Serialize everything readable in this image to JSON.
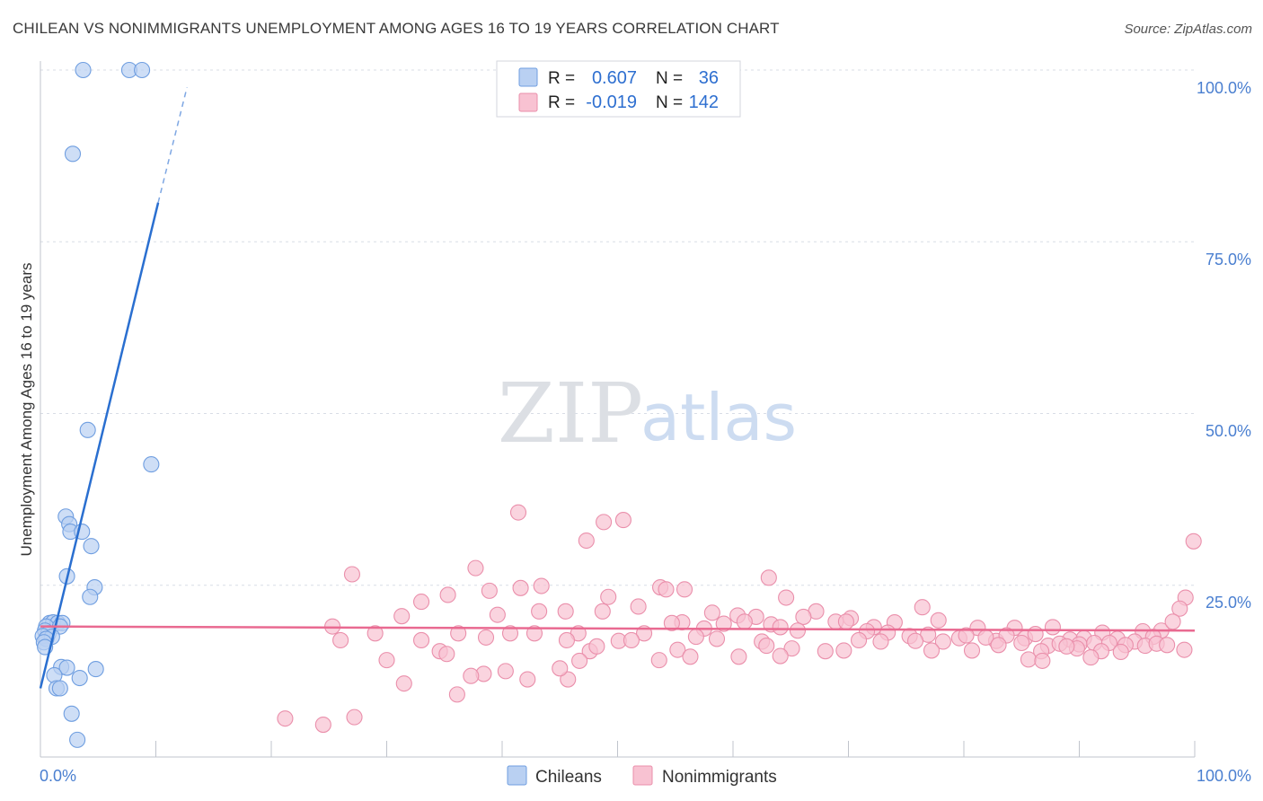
{
  "title": "CHILEAN VS NONIMMIGRANTS UNEMPLOYMENT AMONG AGES 16 TO 19 YEARS CORRELATION CHART",
  "source": "Source: ZipAtlas.com",
  "watermark": {
    "zip": "ZIP",
    "atlas": "atlas"
  },
  "colors": {
    "blue_fill": "#b9d0f2",
    "blue_stroke": "#6f9ee0",
    "blue_line": "#2a6fd0",
    "pink_fill": "#f8c2d2",
    "pink_stroke": "#ea8fab",
    "pink_line": "#e96a91",
    "grid": "#d8dde6",
    "axis": "#c0c4cc"
  },
  "legend": {
    "r_label": "R =",
    "n_label": "N =",
    "rows": [
      {
        "r": "0.607",
        "n": "36",
        "color": "blue"
      },
      {
        "r": "-0.019",
        "n": "142",
        "color": "pink"
      }
    ]
  },
  "chart_data": {
    "type": "scatter",
    "title": "CHILEAN VS NONIMMIGRANTS UNEMPLOYMENT AMONG AGES 16 TO 19 YEARS CORRELATION CHART",
    "xlabel": "",
    "ylabel": "Unemployment Among Ages 16 to 19 years",
    "xlim": [
      0,
      100
    ],
    "ylim": [
      0,
      100
    ],
    "x_tick_labels": [
      "0.0%",
      "100.0%"
    ],
    "y_tick_labels": [
      "100.0%",
      "75.0%",
      "50.0%",
      "25.0%"
    ],
    "y_ticks": [
      100,
      75,
      50,
      25
    ],
    "grid": true,
    "legend_position": "bottom",
    "series": [
      {
        "name": "Chileans",
        "color": "blue",
        "r": 0.607,
        "n": 36,
        "trend": {
          "x0": 0,
          "y0": 10.0,
          "x1": 10.2,
          "y1": 80.7,
          "dashed_to_x": 12.7,
          "dashed_to_y": 97.5
        },
        "points": [
          [
            3.7,
            100
          ],
          [
            7.7,
            100
          ],
          [
            8.8,
            100
          ],
          [
            2.8,
            87.8
          ],
          [
            4.1,
            47.6
          ],
          [
            9.6,
            42.6
          ],
          [
            2.2,
            35.0
          ],
          [
            2.5,
            33.9
          ],
          [
            2.6,
            32.8
          ],
          [
            3.6,
            32.8
          ],
          [
            4.4,
            30.7
          ],
          [
            2.3,
            26.3
          ],
          [
            4.7,
            24.7
          ],
          [
            4.3,
            23.3
          ],
          [
            0.8,
            19.5
          ],
          [
            1.1,
            19.6
          ],
          [
            1.5,
            19.5
          ],
          [
            1.9,
            19.5
          ],
          [
            0.5,
            19.0
          ],
          [
            1.7,
            19.0
          ],
          [
            0.4,
            18.4
          ],
          [
            0.7,
            18.0
          ],
          [
            0.2,
            17.6
          ],
          [
            1.0,
            17.5
          ],
          [
            0.5,
            17.2
          ],
          [
            0.3,
            16.7
          ],
          [
            0.4,
            16.0
          ],
          [
            1.8,
            13.1
          ],
          [
            2.3,
            13.0
          ],
          [
            4.8,
            12.8
          ],
          [
            1.2,
            11.9
          ],
          [
            3.4,
            11.5
          ],
          [
            1.4,
            10.0
          ],
          [
            1.7,
            10.0
          ],
          [
            2.7,
            6.3
          ],
          [
            3.2,
            2.5
          ]
        ]
      },
      {
        "name": "Nonimmigrants",
        "color": "pink",
        "r": -0.019,
        "n": 142,
        "trend": {
          "x0": 0,
          "y0": 19.0,
          "x1": 100,
          "y1": 18.4
        },
        "points": [
          [
            41.4,
            35.6
          ],
          [
            47.3,
            31.5
          ],
          [
            48.8,
            34.2
          ],
          [
            50.5,
            34.5
          ],
          [
            99.9,
            31.4
          ],
          [
            37.7,
            27.5
          ],
          [
            27.0,
            26.6
          ],
          [
            63.1,
            26.1
          ],
          [
            43.4,
            24.9
          ],
          [
            41.6,
            24.6
          ],
          [
            38.9,
            24.2
          ],
          [
            53.7,
            24.7
          ],
          [
            54.2,
            24.4
          ],
          [
            55.8,
            24.4
          ],
          [
            49.2,
            23.3
          ],
          [
            35.3,
            23.6
          ],
          [
            33.0,
            22.6
          ],
          [
            64.6,
            23.2
          ],
          [
            99.2,
            23.2
          ],
          [
            51.8,
            21.9
          ],
          [
            76.4,
            21.8
          ],
          [
            43.2,
            21.2
          ],
          [
            45.5,
            21.2
          ],
          [
            48.7,
            21.2
          ],
          [
            58.2,
            21.0
          ],
          [
            67.2,
            21.2
          ],
          [
            98.7,
            21.6
          ],
          [
            31.3,
            20.5
          ],
          [
            39.6,
            20.7
          ],
          [
            60.4,
            20.6
          ],
          [
            62.0,
            20.4
          ],
          [
            66.1,
            20.4
          ],
          [
            70.2,
            20.2
          ],
          [
            55.6,
            19.6
          ],
          [
            54.7,
            19.5
          ],
          [
            57.5,
            18.7
          ],
          [
            59.2,
            19.4
          ],
          [
            61.0,
            19.7
          ],
          [
            63.3,
            19.3
          ],
          [
            64.1,
            18.9
          ],
          [
            68.9,
            19.7
          ],
          [
            69.8,
            19.7
          ],
          [
            72.2,
            18.9
          ],
          [
            74.0,
            19.6
          ],
          [
            77.8,
            19.9
          ],
          [
            81.2,
            18.8
          ],
          [
            84.4,
            18.8
          ],
          [
            85.3,
            17.3
          ],
          [
            87.7,
            18.9
          ],
          [
            92.0,
            18.1
          ],
          [
            95.5,
            18.3
          ],
          [
            97.1,
            18.4
          ],
          [
            98.1,
            19.7
          ],
          [
            25.3,
            19.0
          ],
          [
            29.0,
            18.0
          ],
          [
            36.2,
            18.0
          ],
          [
            40.7,
            18.0
          ],
          [
            42.8,
            18.0
          ],
          [
            52.3,
            18.0
          ],
          [
            46.6,
            18.0
          ],
          [
            56.8,
            17.5
          ],
          [
            65.6,
            18.4
          ],
          [
            71.6,
            18.3
          ],
          [
            73.4,
            18.1
          ],
          [
            75.3,
            17.6
          ],
          [
            76.9,
            17.8
          ],
          [
            79.6,
            17.3
          ],
          [
            80.2,
            17.7
          ],
          [
            82.8,
            16.9
          ],
          [
            83.7,
            17.7
          ],
          [
            86.2,
            17.9
          ],
          [
            89.2,
            17.1
          ],
          [
            90.4,
            17.3
          ],
          [
            93.3,
            17.2
          ],
          [
            94.8,
            16.8
          ],
          [
            96.4,
            17.5
          ],
          [
            26.0,
            17.0
          ],
          [
            33.0,
            17.0
          ],
          [
            38.6,
            17.4
          ],
          [
            45.6,
            17.0
          ],
          [
            50.1,
            16.9
          ],
          [
            51.2,
            17.0
          ],
          [
            58.6,
            17.2
          ],
          [
            62.5,
            16.8
          ],
          [
            70.9,
            17.0
          ],
          [
            72.8,
            16.8
          ],
          [
            75.8,
            16.9
          ],
          [
            78.2,
            16.8
          ],
          [
            81.9,
            17.4
          ],
          [
            83.0,
            16.3
          ],
          [
            85.0,
            16.6
          ],
          [
            87.3,
            16.2
          ],
          [
            88.3,
            16.5
          ],
          [
            90.0,
            16.4
          ],
          [
            91.3,
            16.6
          ],
          [
            92.6,
            16.6
          ],
          [
            94.0,
            16.3
          ],
          [
            95.7,
            16.2
          ],
          [
            96.7,
            16.5
          ],
          [
            97.6,
            16.3
          ],
          [
            34.6,
            15.4
          ],
          [
            35.2,
            15.0
          ],
          [
            47.6,
            15.4
          ],
          [
            48.2,
            16.1
          ],
          [
            55.2,
            15.6
          ],
          [
            65.1,
            15.8
          ],
          [
            68.0,
            15.4
          ],
          [
            69.6,
            15.5
          ],
          [
            77.2,
            15.5
          ],
          [
            80.7,
            15.5
          ],
          [
            86.7,
            15.4
          ],
          [
            89.8,
            15.8
          ],
          [
            91.9,
            15.4
          ],
          [
            93.6,
            15.3
          ],
          [
            99.1,
            15.6
          ],
          [
            30.0,
            14.1
          ],
          [
            46.7,
            14.0
          ],
          [
            53.6,
            14.1
          ],
          [
            60.5,
            14.6
          ],
          [
            64.1,
            14.7
          ],
          [
            85.6,
            14.2
          ],
          [
            91.0,
            14.5
          ],
          [
            86.8,
            14.0
          ],
          [
            38.4,
            12.1
          ],
          [
            40.3,
            12.5
          ],
          [
            31.5,
            10.7
          ],
          [
            42.2,
            11.3
          ],
          [
            45.7,
            11.3
          ],
          [
            37.3,
            11.8
          ],
          [
            45.0,
            12.9
          ],
          [
            36.1,
            9.1
          ],
          [
            21.2,
            5.6
          ],
          [
            24.5,
            4.7
          ],
          [
            27.2,
            5.8
          ],
          [
            56.3,
            14.6
          ],
          [
            62.9,
            16.2
          ],
          [
            88.9,
            16.1
          ]
        ]
      }
    ]
  },
  "bottom_legend": [
    {
      "label": "Chileans",
      "color": "blue"
    },
    {
      "label": "Nonimmigrants",
      "color": "pink"
    }
  ]
}
